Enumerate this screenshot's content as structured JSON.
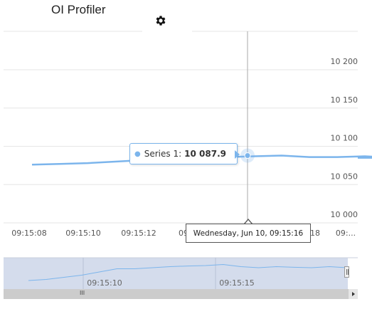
{
  "app": {
    "title": "OI Profiler",
    "settings_icon": "gear-icon"
  },
  "tooltip": {
    "series_name": "Series 1:",
    "value_text": "10 087.9"
  },
  "crosshair_label": "Wednesday, Jun 10, 09:15:16",
  "colors": {
    "series": "#7cb5ec",
    "navigator_fill": "#d4dcec",
    "grid": "#e6e6e6"
  },
  "chart_data": {
    "type": "line",
    "y_axis": {
      "range": [
        10000,
        10200
      ],
      "ticks": [
        10000,
        10050,
        10100,
        10150,
        10200
      ],
      "tick_labels": [
        "10 000",
        "10 050",
        "10 100",
        "10 150",
        "10 200"
      ],
      "position": "right"
    },
    "x_axis": {
      "tick_labels": [
        "09:15:08",
        "09:15:10",
        "09:15:12",
        "09",
        "18",
        "09:..."
      ]
    },
    "grid": true,
    "series": [
      {
        "name": "Series 1",
        "x": [
          "09:15:07",
          "09:15:08",
          "09:15:09",
          "09:15:10",
          "09:15:11",
          "09:15:12",
          "09:15:13",
          "09:15:14",
          "09:15:15",
          "09:15:16",
          "09:15:17",
          "09:15:18",
          "09:15:19",
          "09:15:20"
        ],
        "y": [
          10076,
          10077,
          10078,
          10080,
          10082,
          10083,
          10084,
          10086,
          10087,
          10087.9,
          10086,
          10086,
          10087,
          10085
        ]
      }
    ],
    "highlighted_point": {
      "x": "09:15:16",
      "y": 10087.9
    },
    "navigator": {
      "tick_labels": [
        "09:15:10",
        "09:15:15"
      ],
      "values": [
        0.2,
        0.25,
        0.35,
        0.45,
        0.6,
        0.75,
        0.75,
        0.8,
        0.85,
        0.88,
        0.9,
        0.95,
        0.85,
        0.8,
        0.85,
        0.82,
        0.8,
        0.85,
        0.8
      ]
    },
    "scrollbar": {
      "grip": "III"
    }
  }
}
